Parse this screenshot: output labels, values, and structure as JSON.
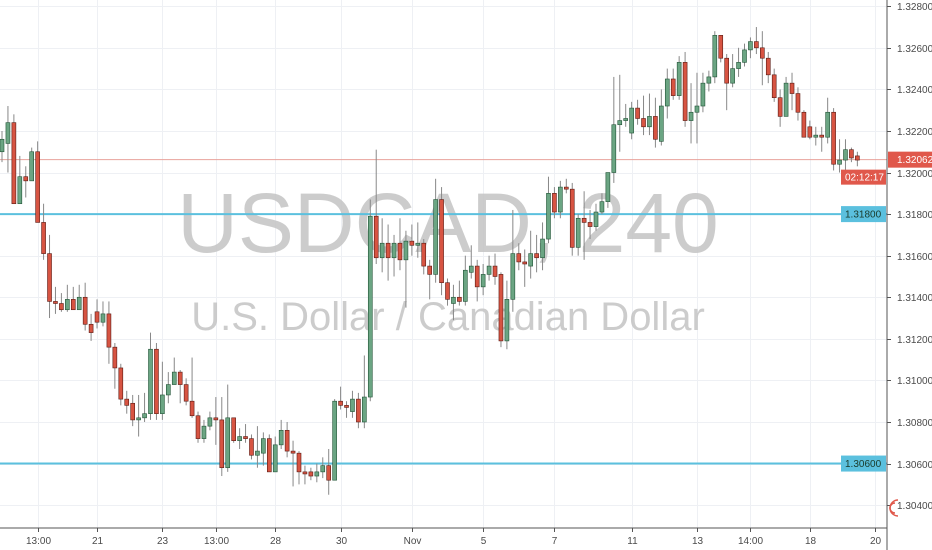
{
  "chart_data": {
    "type": "candlestick",
    "symbol": "USDCAD, 240",
    "description": "U.S. Dollar / Canadian Dollar",
    "ylim": [
      1.3029,
      1.3283
    ],
    "y_ticks": [
      1.304,
      1.306,
      1.308,
      1.31,
      1.312,
      1.314,
      1.316,
      1.318,
      1.32,
      1.322,
      1.324,
      1.326,
      1.328
    ],
    "y_tick_labels": [
      "1.30400",
      "1.30600",
      "1.30800",
      "1.31000",
      "1.31200",
      "1.31400",
      "1.31600",
      "1.31800",
      "1.32000",
      "1.32200",
      "1.32400",
      "1.32600",
      "1.32800"
    ],
    "x_ticks": [
      {
        "label": "13:00",
        "index": 6
      },
      {
        "label": "21",
        "index": 16
      },
      {
        "label": "23",
        "index": 27
      },
      {
        "label": "13:00",
        "index": 36
      },
      {
        "label": "28",
        "index": 46
      },
      {
        "label": "30",
        "index": 57
      },
      {
        "label": "Nov",
        "index": 69
      },
      {
        "label": "5",
        "index": 81
      },
      {
        "label": "7",
        "index": 93
      },
      {
        "label": "11",
        "index": 106
      },
      {
        "label": "13",
        "index": 117
      },
      {
        "label": "14:00",
        "index": 126
      },
      {
        "label": "18",
        "index": 136
      },
      {
        "label": "20",
        "index": 147
      }
    ],
    "grid": true,
    "colors": {
      "up": "#6ba583",
      "down": "#d75442",
      "up_border": "#225437",
      "down_border": "#5b1a13",
      "hline": "#5bc0de",
      "last_price": "#e0584b"
    },
    "horizontal_lines": [
      {
        "price": 1.318,
        "label": "1.31800"
      },
      {
        "price": 1.306,
        "label": "1.30600"
      }
    ],
    "last_price": {
      "price": 1.32062,
      "label": "1.32062",
      "countdown": "02:12:17"
    },
    "ohlc": [
      [
        1.321,
        1.322,
        1.3205,
        1.3216
      ],
      [
        1.3214,
        1.3232,
        1.32,
        1.3224
      ],
      [
        1.3224,
        1.3228,
        1.3185,
        1.3185
      ],
      [
        1.3185,
        1.3208,
        1.3185,
        1.3198
      ],
      [
        1.3198,
        1.3203,
        1.3188,
        1.3196
      ],
      [
        1.3196,
        1.3212,
        1.3196,
        1.321
      ],
      [
        1.321,
        1.3215,
        1.3176,
        1.3176
      ],
      [
        1.3176,
        1.3185,
        1.3158,
        1.3161
      ],
      [
        1.3161,
        1.317,
        1.313,
        1.3138
      ],
      [
        1.3138,
        1.3145,
        1.3132,
        1.3137
      ],
      [
        1.3137,
        1.3142,
        1.3133,
        1.3134
      ],
      [
        1.3134,
        1.3146,
        1.3133,
        1.3139
      ],
      [
        1.3139,
        1.3145,
        1.3134,
        1.3134
      ],
      [
        1.3134,
        1.3146,
        1.3134,
        1.314
      ],
      [
        1.314,
        1.3147,
        1.3124,
        1.3127
      ],
      [
        1.3127,
        1.3132,
        1.3119,
        1.3123
      ],
      [
        1.3133,
        1.3139,
        1.3125,
        1.3128
      ],
      [
        1.3128,
        1.3138,
        1.3126,
        1.3132
      ],
      [
        1.3132,
        1.3138,
        1.3108,
        1.3116
      ],
      [
        1.3116,
        1.3118,
        1.3096,
        1.3106
      ],
      [
        1.3106,
        1.3108,
        1.3088,
        1.3091
      ],
      [
        1.3091,
        1.3095,
        1.3084,
        1.3088
      ],
      [
        1.3089,
        1.3093,
        1.3078,
        1.3081
      ],
      [
        1.3081,
        1.3093,
        1.3073,
        1.3082
      ],
      [
        1.3082,
        1.3094,
        1.308,
        1.3084
      ],
      [
        1.3084,
        1.3123,
        1.3081,
        1.3115
      ],
      [
        1.3115,
        1.3118,
        1.3081,
        1.3084
      ],
      [
        1.3084,
        1.3109,
        1.3081,
        1.3093
      ],
      [
        1.3093,
        1.3104,
        1.3089,
        1.3098
      ],
      [
        1.3098,
        1.3111,
        1.3098,
        1.3104
      ],
      [
        1.3104,
        1.3105,
        1.3089,
        1.3098
      ],
      [
        1.3098,
        1.3101,
        1.3088,
        1.309
      ],
      [
        1.309,
        1.3111,
        1.3082,
        1.3083
      ],
      [
        1.3083,
        1.3085,
        1.307,
        1.3072
      ],
      [
        1.3072,
        1.3081,
        1.307,
        1.3078
      ],
      [
        1.3078,
        1.3085,
        1.3076,
        1.3082
      ],
      [
        1.3082,
        1.3092,
        1.3069,
        1.3081
      ],
      [
        1.3081,
        1.3092,
        1.3054,
        1.3058
      ],
      [
        1.3058,
        1.3098,
        1.3056,
        1.3082
      ],
      [
        1.3082,
        1.3082,
        1.307,
        1.3071
      ],
      [
        1.3071,
        1.3077,
        1.3067,
        1.3073
      ],
      [
        1.3073,
        1.3079,
        1.307,
        1.3072
      ],
      [
        1.3072,
        1.3074,
        1.3062,
        1.3064
      ],
      [
        1.3064,
        1.3078,
        1.3058,
        1.3066
      ],
      [
        1.3065,
        1.3075,
        1.3059,
        1.3072
      ],
      [
        1.3072,
        1.3074,
        1.3056,
        1.3056
      ],
      [
        1.3056,
        1.3073,
        1.3056,
        1.3069
      ],
      [
        1.3069,
        1.3081,
        1.3067,
        1.3076
      ],
      [
        1.3076,
        1.308,
        1.3063,
        1.3066
      ],
      [
        1.3066,
        1.3071,
        1.3049,
        1.3065
      ],
      [
        1.3065,
        1.3066,
        1.305,
        1.3056
      ],
      [
        1.3056,
        1.3059,
        1.305,
        1.3055
      ],
      [
        1.3056,
        1.3058,
        1.3052,
        1.3054
      ],
      [
        1.3054,
        1.306,
        1.3051,
        1.3056
      ],
      [
        1.3056,
        1.3063,
        1.3053,
        1.3059
      ],
      [
        1.3059,
        1.3067,
        1.3045,
        1.3052
      ],
      [
        1.3052,
        1.3091,
        1.3052,
        1.309
      ],
      [
        1.309,
        1.3097,
        1.3086,
        1.3088
      ],
      [
        1.3088,
        1.309,
        1.3082,
        1.3087
      ],
      [
        1.3085,
        1.3095,
        1.3082,
        1.3091
      ],
      [
        1.3091,
        1.3094,
        1.3077,
        1.308
      ],
      [
        1.308,
        1.3112,
        1.3077,
        1.3092
      ],
      [
        1.3092,
        1.3187,
        1.309,
        1.3179
      ],
      [
        1.3179,
        1.3211,
        1.3156,
        1.3159
      ],
      [
        1.3159,
        1.3178,
        1.3152,
        1.3166
      ],
      [
        1.3166,
        1.3175,
        1.3148,
        1.3159
      ],
      [
        1.3159,
        1.317,
        1.315,
        1.3166
      ],
      [
        1.3166,
        1.3178,
        1.3153,
        1.3158
      ],
      [
        1.3158,
        1.3172,
        1.3135,
        1.3167
      ],
      [
        1.3167,
        1.3175,
        1.316,
        1.3165
      ],
      [
        1.3165,
        1.3176,
        1.3159,
        1.3166
      ],
      [
        1.3166,
        1.3168,
        1.3151,
        1.3155
      ],
      [
        1.3155,
        1.3158,
        1.3139,
        1.3151
      ],
      [
        1.3151,
        1.3197,
        1.3147,
        1.3187
      ],
      [
        1.3187,
        1.3193,
        1.3141,
        1.3147
      ],
      [
        1.3147,
        1.3149,
        1.3136,
        1.3139
      ],
      [
        1.3137,
        1.3146,
        1.3129,
        1.314
      ],
      [
        1.314,
        1.3148,
        1.3136,
        1.3138
      ],
      [
        1.3138,
        1.316,
        1.3136,
        1.3153
      ],
      [
        1.3152,
        1.3165,
        1.3149,
        1.3155
      ],
      [
        1.3155,
        1.3158,
        1.3138,
        1.3145
      ],
      [
        1.3145,
        1.3156,
        1.3141,
        1.3151
      ],
      [
        1.3151,
        1.316,
        1.3148,
        1.3155
      ],
      [
        1.3155,
        1.3161,
        1.3146,
        1.315
      ],
      [
        1.3151,
        1.3152,
        1.3116,
        1.3119
      ],
      [
        1.3119,
        1.3148,
        1.3115,
        1.3139
      ],
      [
        1.3139,
        1.3182,
        1.3133,
        1.3161
      ],
      [
        1.3161,
        1.3166,
        1.3153,
        1.3157
      ],
      [
        1.3157,
        1.3163,
        1.3145,
        1.3156
      ],
      [
        1.3155,
        1.3172,
        1.3149,
        1.3161
      ],
      [
        1.3161,
        1.317,
        1.3152,
        1.3159
      ],
      [
        1.3159,
        1.3176,
        1.3153,
        1.3168
      ],
      [
        1.3168,
        1.3198,
        1.3166,
        1.319
      ],
      [
        1.319,
        1.3193,
        1.3178,
        1.3181
      ],
      [
        1.3181,
        1.3196,
        1.3178,
        1.3193
      ],
      [
        1.3193,
        1.3197,
        1.319,
        1.3192
      ],
      [
        1.3192,
        1.3195,
        1.316,
        1.3164
      ],
      [
        1.3164,
        1.318,
        1.316,
        1.3178
      ],
      [
        1.3178,
        1.3191,
        1.3158,
        1.3176
      ],
      [
        1.3176,
        1.3182,
        1.3168,
        1.3174
      ],
      [
        1.3174,
        1.3185,
        1.3172,
        1.3181
      ],
      [
        1.3181,
        1.319,
        1.318,
        1.3186
      ],
      [
        1.3186,
        1.32,
        1.3183,
        1.32
      ],
      [
        1.32,
        1.3246,
        1.3195,
        1.3223
      ],
      [
        1.3223,
        1.3247,
        1.321,
        1.3225
      ],
      [
        1.3225,
        1.3233,
        1.3222,
        1.3226
      ],
      [
        1.3219,
        1.3234,
        1.3216,
        1.3231
      ],
      [
        1.3231,
        1.3235,
        1.3223,
        1.3226
      ],
      [
        1.3226,
        1.3237,
        1.3218,
        1.3222
      ],
      [
        1.3222,
        1.3238,
        1.3218,
        1.3227
      ],
      [
        1.3227,
        1.3236,
        1.3212,
        1.3216
      ],
      [
        1.3215,
        1.324,
        1.3213,
        1.3232
      ],
      [
        1.3232,
        1.325,
        1.3226,
        1.3245
      ],
      [
        1.3245,
        1.325,
        1.3235,
        1.3237
      ],
      [
        1.3237,
        1.3256,
        1.3235,
        1.3253
      ],
      [
        1.3253,
        1.3258,
        1.3222,
        1.3225
      ],
      [
        1.3225,
        1.3243,
        1.3214,
        1.3229
      ],
      [
        1.3229,
        1.3248,
        1.3214,
        1.3232
      ],
      [
        1.3232,
        1.3248,
        1.3229,
        1.3243
      ],
      [
        1.3243,
        1.3249,
        1.3239,
        1.3246
      ],
      [
        1.3246,
        1.3268,
        1.3243,
        1.3266
      ],
      [
        1.3266,
        1.3266,
        1.3253,
        1.3255
      ],
      [
        1.3255,
        1.3257,
        1.323,
        1.3243
      ],
      [
        1.3243,
        1.3257,
        1.3241,
        1.325
      ],
      [
        1.325,
        1.326,
        1.3246,
        1.3253
      ],
      [
        1.3253,
        1.3262,
        1.3251,
        1.3259
      ],
      [
        1.3259,
        1.3265,
        1.3255,
        1.3263
      ],
      [
        1.3263,
        1.327,
        1.3257,
        1.326
      ],
      [
        1.326,
        1.3268,
        1.3242,
        1.3255
      ],
      [
        1.3255,
        1.3258,
        1.3243,
        1.3247
      ],
      [
        1.3247,
        1.325,
        1.3234,
        1.3236
      ],
      [
        1.3236,
        1.324,
        1.3222,
        1.3227
      ],
      [
        1.3227,
        1.3246,
        1.3227,
        1.3243
      ],
      [
        1.3243,
        1.3248,
        1.323,
        1.3238
      ],
      [
        1.3238,
        1.3241,
        1.3225,
        1.3229
      ],
      [
        1.3229,
        1.323,
        1.3217,
        1.3217
      ],
      [
        1.3222,
        1.3225,
        1.3216,
        1.3217
      ],
      [
        1.3217,
        1.3222,
        1.3213,
        1.3218
      ],
      [
        1.3218,
        1.3222,
        1.321,
        1.3217
      ],
      [
        1.3217,
        1.3236,
        1.3214,
        1.3229
      ],
      [
        1.3229,
        1.3231,
        1.3201,
        1.3204
      ],
      [
        1.3204,
        1.3216,
        1.32,
        1.3206
      ],
      [
        1.3206,
        1.3216,
        1.32,
        1.3211
      ],
      [
        1.3211,
        1.3212,
        1.3205,
        1.3207
      ],
      [
        1.3208,
        1.321,
        1.3203,
        1.3206
      ]
    ]
  }
}
